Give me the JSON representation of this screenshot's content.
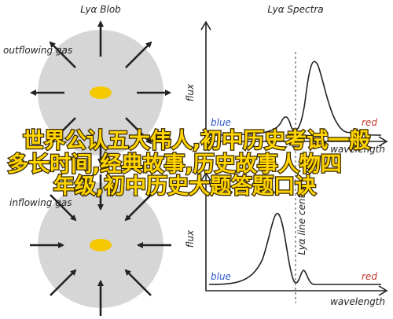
{
  "left": {
    "title": "Lyα Blob",
    "top_label": "outflowing gas",
    "bottom_label": "inflowing gas"
  },
  "right": {
    "title": "Lyα Spectra",
    "line_label": "Lyα line center",
    "top": {
      "y_label": "flux",
      "blue": "blue",
      "red": "red",
      "x_label": "wavelength"
    },
    "bottom": {
      "y_label": "flux",
      "blue": "blue",
      "red": "red",
      "x_label": "wavelength"
    }
  },
  "overlay": {
    "lines": [
      "世界公认五大伟人,初中历史考试一般",
      "多长时间,经典故事,历史故事人物四",
      "年级,初中历史大题答题口诀"
    ]
  }
}
